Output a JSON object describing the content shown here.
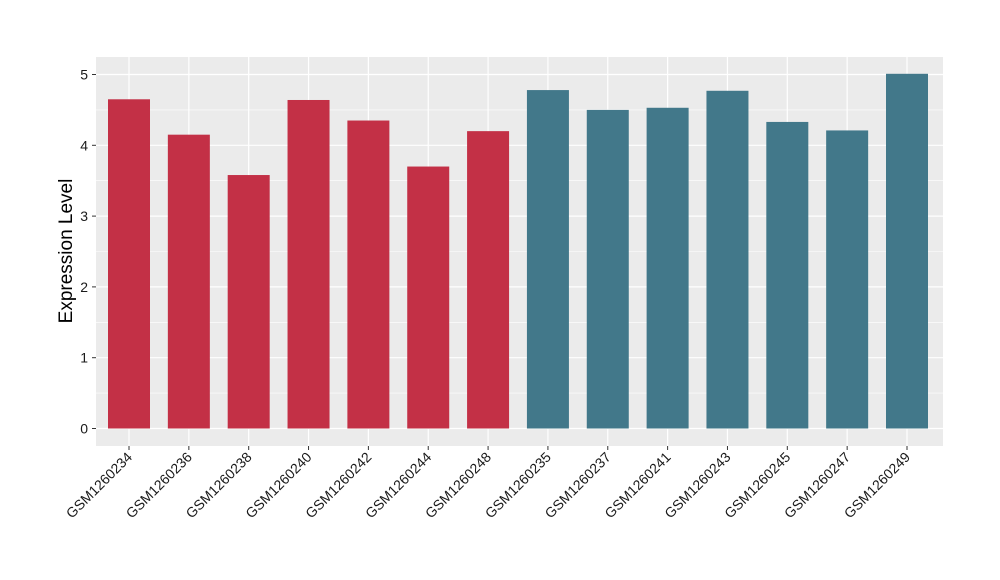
{
  "chart_data": {
    "type": "bar",
    "ylabel": "Expression Level",
    "xlabel": "",
    "ylim": [
      0,
      5
    ],
    "yticks": [
      0,
      1,
      2,
      3,
      4,
      5
    ],
    "grid": true,
    "categories": [
      "GSM1260234",
      "GSM1260236",
      "GSM1260238",
      "GSM1260240",
      "GSM1260242",
      "GSM1260244",
      "GSM1260248",
      "GSM1260235",
      "GSM1260237",
      "GSM1260241",
      "GSM1260243",
      "GSM1260245",
      "GSM1260247",
      "GSM1260249"
    ],
    "values": [
      4.65,
      4.15,
      3.58,
      4.64,
      4.35,
      3.7,
      4.2,
      4.78,
      4.5,
      4.53,
      4.77,
      4.33,
      4.21,
      5.01
    ],
    "groups": [
      {
        "color": "#c33046",
        "indices": [
          0,
          1,
          2,
          3,
          4,
          5,
          6
        ]
      },
      {
        "color": "#42788a",
        "indices": [
          7,
          8,
          9,
          10,
          11,
          12,
          13
        ]
      }
    ],
    "colors": {
      "panel": "#ebebeb",
      "grid": "#ffffff"
    }
  }
}
